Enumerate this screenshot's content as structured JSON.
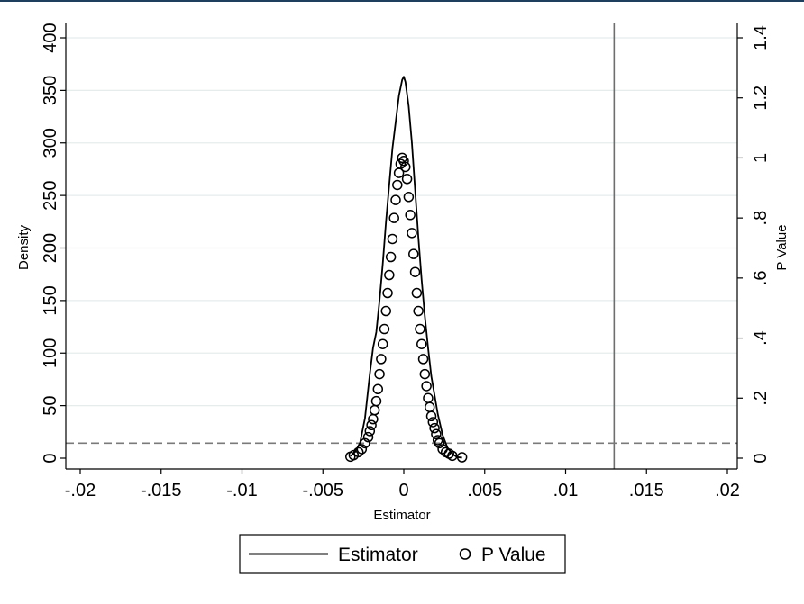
{
  "chart_data": {
    "type": "line",
    "title": "",
    "xlabel": "Estimator",
    "ylabel_left": "Density",
    "ylabel_right": "P Value",
    "xlim": [
      -0.02,
      0.02
    ],
    "ylim_left": [
      0,
      400
    ],
    "ylim_right": [
      0,
      1.4
    ],
    "grid": true,
    "legend_position": "bottom",
    "x_ticks": [
      {
        "value": -0.02,
        "label": "-.02"
      },
      {
        "value": -0.015,
        "label": "-.015"
      },
      {
        "value": -0.01,
        "label": "-.01"
      },
      {
        "value": -0.005,
        "label": "-.005"
      },
      {
        "value": 0,
        "label": "0"
      },
      {
        "value": 0.005,
        "label": ".005"
      },
      {
        "value": 0.01,
        "label": ".01"
      },
      {
        "value": 0.015,
        "label": ".015"
      },
      {
        "value": 0.02,
        "label": ".02"
      }
    ],
    "y_left_ticks": [
      {
        "value": 0,
        "label": "0"
      },
      {
        "value": 50,
        "label": "50"
      },
      {
        "value": 100,
        "label": "100"
      },
      {
        "value": 150,
        "label": "150"
      },
      {
        "value": 200,
        "label": "200"
      },
      {
        "value": 250,
        "label": "250"
      },
      {
        "value": 300,
        "label": "300"
      },
      {
        "value": 350,
        "label": "350"
      },
      {
        "value": 400,
        "label": "400"
      }
    ],
    "y_right_ticks": [
      {
        "value": 0,
        "label": "0"
      },
      {
        "value": 0.2,
        "label": ".2"
      },
      {
        "value": 0.4,
        "label": ".4"
      },
      {
        "value": 0.6,
        "label": ".6"
      },
      {
        "value": 0.8,
        "label": ".8"
      },
      {
        "value": 1.0,
        "label": "1"
      },
      {
        "value": 1.2,
        "label": "1.2"
      },
      {
        "value": 1.4,
        "label": "1.4"
      }
    ],
    "series": [
      {
        "name": "Estimator",
        "kind": "line",
        "axis": "left",
        "color": "#000000",
        "x": [
          -0.0033,
          -0.003,
          -0.0027,
          -0.0024,
          -0.0021,
          -0.0019,
          -0.0017,
          -0.0015,
          -0.0013,
          -0.0011,
          -0.0009,
          -0.0007,
          -0.0005,
          -0.0003,
          -0.0001,
          0.0,
          0.0001,
          0.0003,
          0.0005,
          0.0007,
          0.0009,
          0.0011,
          0.0013,
          0.0015,
          0.0017,
          0.0019,
          0.0021,
          0.0024,
          0.0027,
          0.003,
          0.0033,
          0.0036
        ],
        "y": [
          2,
          6,
          15,
          38,
          80,
          105,
          120,
          150,
          185,
          225,
          260,
          295,
          320,
          345,
          360,
          363,
          358,
          335,
          300,
          255,
          210,
          170,
          135,
          105,
          78,
          60,
          42,
          22,
          10,
          4,
          1,
          0.5
        ]
      },
      {
        "name": "P Value",
        "kind": "scatter",
        "axis": "right",
        "marker": "hollow-circle",
        "color": "#000000",
        "x": [
          -0.0033,
          -0.0031,
          -0.0028,
          -0.0026,
          -0.0024,
          -0.0022,
          -0.0021,
          -0.002,
          -0.0019,
          -0.0018,
          -0.0017,
          -0.0016,
          -0.0015,
          -0.0014,
          -0.0013,
          -0.0012,
          -0.0011,
          -0.001,
          -0.0009,
          -0.0008,
          -0.0007,
          -0.0006,
          -0.0005,
          -0.0004,
          -0.0003,
          -0.0002,
          -0.0001,
          0.0,
          0.0001,
          0.0002,
          0.0003,
          0.0004,
          0.0005,
          0.0006,
          0.0007,
          0.0008,
          0.0009,
          0.001,
          0.0011,
          0.0012,
          0.0013,
          0.0014,
          0.0015,
          0.0016,
          0.0017,
          0.0018,
          0.0019,
          0.002,
          0.0021,
          0.0022,
          0.0024,
          0.0026,
          0.0028,
          0.003,
          0.0036
        ],
        "y": [
          0.005,
          0.01,
          0.02,
          0.03,
          0.05,
          0.07,
          0.09,
          0.11,
          0.13,
          0.16,
          0.19,
          0.23,
          0.28,
          0.33,
          0.38,
          0.43,
          0.49,
          0.55,
          0.61,
          0.67,
          0.73,
          0.8,
          0.86,
          0.91,
          0.95,
          0.98,
          1.0,
          0.99,
          0.97,
          0.93,
          0.87,
          0.81,
          0.75,
          0.68,
          0.62,
          0.55,
          0.49,
          0.43,
          0.38,
          0.33,
          0.28,
          0.24,
          0.2,
          0.17,
          0.14,
          0.12,
          0.1,
          0.08,
          0.06,
          0.05,
          0.03,
          0.02,
          0.015,
          0.008,
          0.003
        ]
      }
    ],
    "reference_lines": [
      {
        "orientation": "vertical",
        "x": 0.013,
        "style": "solid",
        "color": "#6e6e6e"
      },
      {
        "orientation": "horizontal",
        "axis": "right",
        "y": 0.05,
        "style": "dashed",
        "color": "#7a7a7a"
      }
    ]
  }
}
